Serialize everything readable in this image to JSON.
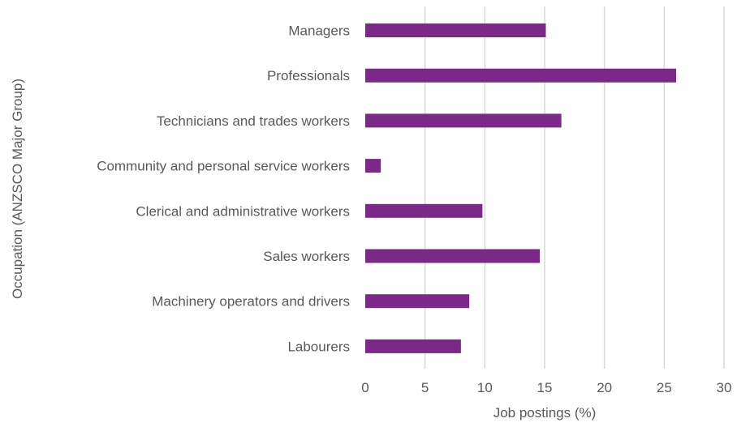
{
  "chart_data": {
    "type": "bar",
    "orientation": "horizontal",
    "categories": [
      "Managers",
      "Professionals",
      "Technicians and trades workers",
      "Community and personal service workers",
      "Clerical and administrative workers",
      "Sales workers",
      "Machinery operators and drivers",
      "Labourers"
    ],
    "values": [
      15.1,
      26.0,
      16.4,
      1.3,
      9.8,
      14.6,
      8.7,
      8.0
    ],
    "xlabel": "Job postings (%)",
    "ylabel": "Occupation (ANZSCO Major Group)",
    "xlim": [
      0,
      30
    ],
    "xticks": [
      "0",
      "5",
      "10",
      "15",
      "20",
      "25",
      "30"
    ],
    "grid": "vertical",
    "bar_color": "#7b2889"
  }
}
